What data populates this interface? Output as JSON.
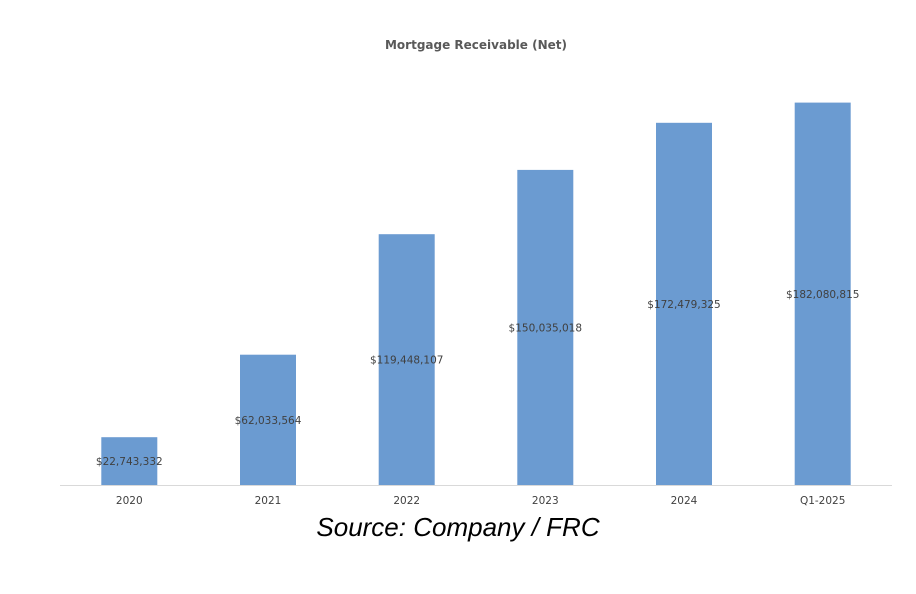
{
  "chart_data": {
    "type": "bar",
    "title": "Mortgage Receivable (Net)",
    "categories": [
      "2020",
      "2021",
      "2022",
      "2023",
      "2024",
      "Q1-2025"
    ],
    "values": [
      22743332,
      62033564,
      119448107,
      150035018,
      172479325,
      182080815
    ],
    "data_labels": [
      "$22,743,332",
      "$62,033,564",
      "$119,448,107",
      "$150,035,018",
      "$172,479,325",
      "$182,080,815"
    ],
    "xlabel": "",
    "ylabel": "",
    "ylim": [
      0,
      200000000
    ],
    "grid": false,
    "legend": "none",
    "bar_color": "#6b9bd1",
    "axis_color": "#d9d9d9"
  },
  "caption": "Source: Company / FRC"
}
